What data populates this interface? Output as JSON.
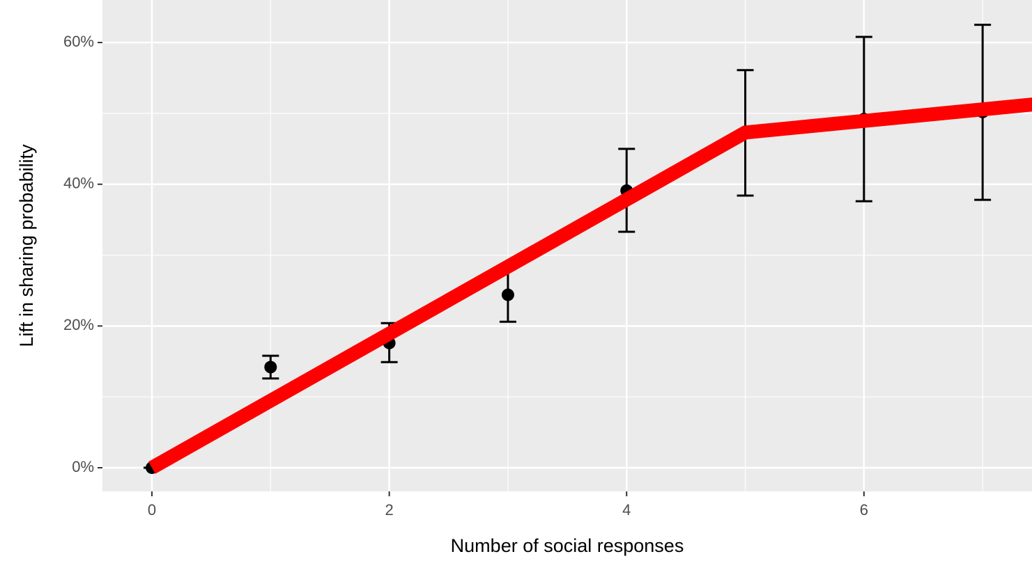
{
  "chart_data": {
    "type": "errorbar",
    "x_label": "Number of social responses",
    "y_label": "Lift in sharing probability",
    "x": [
      0,
      1,
      2,
      3,
      4,
      5,
      6,
      7
    ],
    "values": [
      0,
      14.2,
      17.6,
      24.4,
      39.1,
      47.3,
      49.2,
      50.2
    ],
    "lower": [
      0,
      12.6,
      14.9,
      20.6,
      33.3,
      38.4,
      37.6,
      37.8
    ],
    "upper": [
      0,
      15.8,
      20.4,
      28.4,
      45.0,
      56.1,
      60.8,
      62.5
    ],
    "color": "#000000",
    "fit": {
      "x": [
        0,
        5,
        8
      ],
      "values": [
        0,
        47.3,
        52.2
      ],
      "color": "#ff0000"
    },
    "xlim": [
      -0.417,
      7.416
    ],
    "ylim": [
      -3.34,
      66.0
    ],
    "xticks": [
      0,
      2,
      4,
      6
    ],
    "minor_xticks": [
      1,
      3,
      5,
      7
    ],
    "yticks": [
      {
        "value": 0,
        "label": "0%"
      },
      {
        "value": 20,
        "label": "20%"
      },
      {
        "value": 40,
        "label": "40%"
      },
      {
        "value": 60,
        "label": "60%"
      }
    ],
    "minor_yticks": [
      10,
      30,
      50
    ],
    "grid": true
  }
}
